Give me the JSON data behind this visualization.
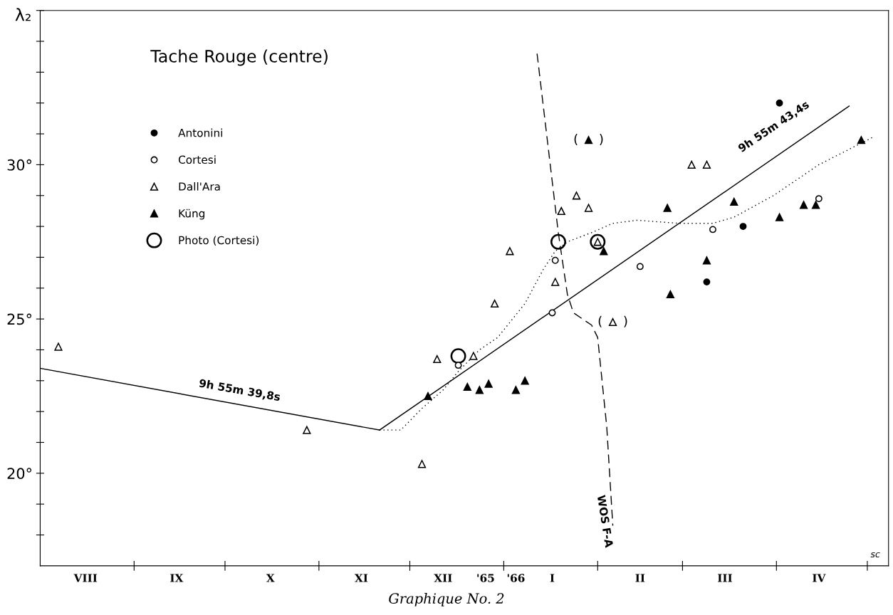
{
  "chart_data": {
    "type": "scatter",
    "title": "Tache Rouge (centre)",
    "ylabel": "λ₂",
    "xlim": [
      "1965-08-01",
      "1966-05-08"
    ],
    "ylim": [
      17,
      35
    ],
    "xticks": [
      {
        "value": "1965-09-01",
        "label": null
      },
      {
        "value": "1965-10-01",
        "label": null
      },
      {
        "value": "1965-11-01",
        "label": null
      },
      {
        "value": "1965-12-01",
        "label": null
      },
      {
        "value": "1966-01-01",
        "label": null
      },
      {
        "value": "1966-02-01",
        "label": null
      },
      {
        "value": "1966-03-01",
        "label": null
      },
      {
        "value": "1966-04-01",
        "label": null
      },
      {
        "value": "1966-05-01",
        "label": null
      },
      {
        "value": "1965-08-16",
        "label": "VIII"
      },
      {
        "value": "1965-09-15",
        "label": "IX"
      },
      {
        "value": "1965-10-16",
        "label": "X"
      },
      {
        "value": "1965-11-15",
        "label": "XI"
      },
      {
        "value": "1965-12-12",
        "label": "XII"
      },
      {
        "value": "1965-12-26",
        "label": "'65"
      },
      {
        "value": "1966-01-05",
        "label": "'66"
      },
      {
        "value": "1966-01-17",
        "label": "I"
      },
      {
        "value": "1966-02-15",
        "label": "II"
      },
      {
        "value": "1966-03-15",
        "label": "III"
      },
      {
        "value": "1966-04-15",
        "label": "IV"
      }
    ],
    "yticks": [
      {
        "value": 18,
        "label": null
      },
      {
        "value": 19,
        "label": null
      },
      {
        "value": 20,
        "label": "20°"
      },
      {
        "value": 21,
        "label": null
      },
      {
        "value": 22,
        "label": null
      },
      {
        "value": 23,
        "label": null
      },
      {
        "value": 24,
        "label": null
      },
      {
        "value": 25,
        "label": "25°"
      },
      {
        "value": 26,
        "label": null
      },
      {
        "value": 27,
        "label": null
      },
      {
        "value": 28,
        "label": null
      },
      {
        "value": 29,
        "label": null
      },
      {
        "value": 30,
        "label": "30°"
      },
      {
        "value": 31,
        "label": null
      },
      {
        "value": 32,
        "label": null
      },
      {
        "value": 33,
        "label": null
      },
      {
        "value": 34,
        "label": null
      },
      {
        "value": 35,
        "label": null
      }
    ],
    "legend": "top left",
    "series": [
      {
        "type": "line",
        "color": "#000000",
        "line_style": "solid",
        "marker": "none",
        "x": [
          "1965-08-01",
          "1965-11-21"
        ],
        "values": [
          23.4,
          21.4
        ]
      },
      {
        "type": "line",
        "color": "#000000",
        "line_style": "solid",
        "marker": "none",
        "x": [
          "1965-11-21",
          "1966-04-25"
        ],
        "values": [
          21.4,
          31.9
        ]
      },
      {
        "type": "line",
        "color": "#000000",
        "line_style": "dotted",
        "marker": "none",
        "x": [
          "1965-11-21",
          "1965-11-28",
          "1965-12-05",
          "1965-12-12",
          "1965-12-17",
          "1965-12-24",
          "1965-12-30",
          "1966-01-08",
          "1966-01-14",
          "1966-01-18",
          "1966-01-22",
          "1966-01-30",
          "1966-02-06",
          "1966-02-14",
          "1966-02-28",
          "1966-03-11",
          "1966-03-18",
          "1966-03-31",
          "1966-04-15",
          "1966-05-03"
        ],
        "values": [
          21.4,
          21.4,
          22.1,
          22.7,
          23.3,
          24.0,
          24.4,
          25.5,
          26.6,
          27.2,
          27.5,
          27.8,
          28.1,
          28.2,
          28.1,
          28.1,
          28.3,
          29.0,
          30.0,
          30.9
        ]
      },
      {
        "type": "line",
        "color": "#000000",
        "line_style": "dashed",
        "marker": "none",
        "x": [
          "1966-01-12",
          "1966-01-19",
          "1966-01-22",
          "1966-01-24",
          "1966-01-30",
          "1966-02-01",
          "1966-02-04",
          "1966-02-06"
        ],
        "values": [
          33.6,
          27.8,
          25.8,
          25.2,
          24.8,
          24.4,
          21.5,
          18.3
        ]
      },
      {
        "name": "Antonini",
        "color": "#000000",
        "marker": "circle",
        "x": [
          "1966-04-02",
          "1966-03-21",
          "1966-03-09"
        ],
        "values": [
          32.0,
          28.0,
          26.2
        ]
      },
      {
        "name": "Cortesi",
        "color": "#ffffff",
        "marker": "circle",
        "x": [
          "1965-12-17",
          "1966-01-17",
          "1966-01-18",
          "1966-02-15",
          "1966-03-11",
          "1966-04-15"
        ],
        "values": [
          23.5,
          25.2,
          26.9,
          26.7,
          27.9,
          28.9
        ]
      },
      {
        "name": "Dall'Ara",
        "color": "#ffffff",
        "marker": "triangle",
        "x": [
          "1965-08-07",
          "1965-10-28",
          "1965-12-05",
          "1965-12-10",
          "1965-12-22",
          "1965-12-29",
          "1966-01-03",
          "1966-01-18",
          "1966-01-20",
          "1966-01-25",
          "1966-01-29",
          "1966-02-01",
          "1966-02-06",
          "1966-03-04",
          "1966-03-09"
        ],
        "values": [
          24.1,
          21.4,
          20.3,
          23.7,
          23.8,
          25.5,
          27.2,
          26.2,
          28.5,
          29.0,
          28.6,
          27.5,
          24.9,
          30.0,
          30.0
        ]
      },
      {
        "name": "Küng",
        "color": "#000000",
        "marker": "triangle",
        "x": [
          "1965-12-07",
          "1965-12-20",
          "1965-12-24",
          "1965-12-27",
          "1966-01-05",
          "1966-01-08",
          "1966-01-29",
          "1966-02-03",
          "1966-02-24",
          "1966-02-25",
          "1966-03-09",
          "1966-03-18",
          "1966-04-02",
          "1966-04-10",
          "1966-04-14",
          "1966-04-29"
        ],
        "values": [
          22.5,
          22.8,
          22.7,
          22.9,
          22.7,
          23.0,
          30.8,
          27.2,
          28.6,
          25.8,
          26.9,
          28.8,
          28.3,
          28.7,
          28.7,
          30.8
        ]
      },
      {
        "name": "Photo (Cortesi)",
        "color": "#000000",
        "marker": "circle",
        "x": [
          "1965-12-17",
          "1966-01-19",
          "1966-02-01"
        ],
        "values": [
          23.8,
          27.5,
          27.5
        ]
      }
    ],
    "annotations": [
      "9h 55m 39,8s",
      "9h 55m 43,4s",
      "WOS F-A",
      {
        "text": "(     )",
        "x": "1966-01-29",
        "y": 30.8
      },
      {
        "text": "(     )",
        "x": "1966-02-06",
        "y": 24.9
      },
      "sc",
      "Graphique No. 2"
    ]
  }
}
